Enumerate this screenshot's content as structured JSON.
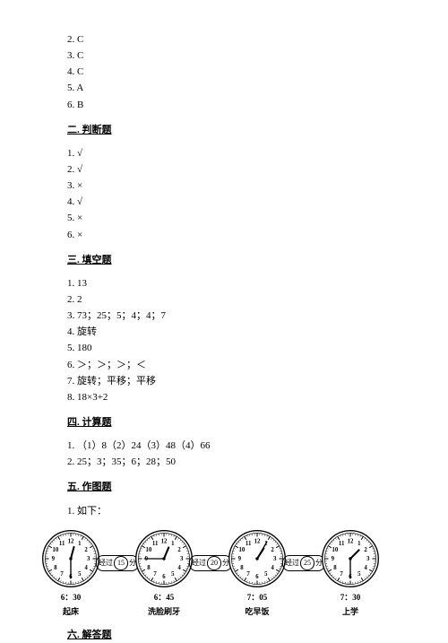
{
  "top_answers": [
    "2. C",
    "3. C",
    "4. C",
    "5. A",
    "6. B"
  ],
  "sections": {
    "judgement": {
      "heading": "二. 判断题",
      "items": [
        "1. √",
        "2. √",
        "3. ×",
        "4. √",
        "5. ×",
        "6. ×"
      ]
    },
    "blanks": {
      "heading": "三. 填空题",
      "items": [
        "1. 13",
        "2. 2",
        "3. 73；25；5；4；4；7",
        "4. 旋转",
        "5. 180",
        "6. ＞；＞；＞；＜",
        "7. 旋转；平移；平移",
        "8. 18×3+2"
      ]
    },
    "calc": {
      "heading": "四. 计算题",
      "items": [
        "1. （1）8（2）24（3）48（4）66",
        "2. 25；3；35；6；28；50"
      ]
    },
    "drawing": {
      "heading": "五. 作图题",
      "items": [
        "1. 如下："
      ]
    },
    "solve": {
      "heading": "六. 解答题"
    }
  },
  "clocks": [
    {
      "time": "6：30",
      "label": "起床",
      "hour_angle": 15,
      "minute_angle": 180
    },
    {
      "time": "6：45",
      "label": "洗脸刷牙",
      "hour_angle": 22.5,
      "minute_angle": 270
    },
    {
      "time": "7：05",
      "label": "吃早饭",
      "hour_angle": 32.5,
      "minute_angle": 30
    },
    {
      "time": "7：30",
      "label": "上学",
      "hour_angle": 45,
      "minute_angle": 180
    }
  ],
  "connectors": [
    {
      "label_prefix": "经过",
      "value": "15",
      "label_suffix": "分"
    },
    {
      "label_prefix": "经过",
      "value": "20",
      "label_suffix": "分"
    },
    {
      "label_prefix": "经过",
      "value": "25",
      "label_suffix": "分"
    }
  ],
  "clock_style": {
    "stroke": "#000000",
    "face_fill": "#ffffff",
    "font_size_numeral": 8
  }
}
